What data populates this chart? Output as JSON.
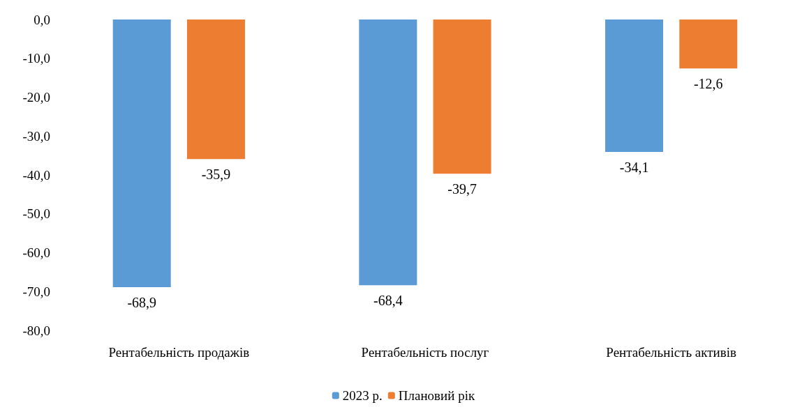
{
  "chart_data": {
    "type": "bar",
    "categories": [
      "Рентабельність продажів",
      "Рентабельність послуг",
      "Рентабельність активів"
    ],
    "series": [
      {
        "name": "2023 р.",
        "color": "#5b9bd5",
        "values": [
          -68.9,
          -68.4,
          -34.1
        ],
        "value_labels": [
          "-68,9",
          "-68,4",
          "-34,1"
        ]
      },
      {
        "name": "Плановий рік",
        "color": "#ed7d31",
        "values": [
          -35.9,
          -39.7,
          -12.6
        ],
        "value_labels": [
          "-35,9",
          "-39,7",
          "-12,6"
        ]
      }
    ],
    "ylim": [
      -80,
      0
    ],
    "yticks": [
      {
        "value": 0,
        "label": "0,0"
      },
      {
        "value": -10,
        "label": "-10,0"
      },
      {
        "value": -20,
        "label": "-20,0"
      },
      {
        "value": -30,
        "label": "-30,0"
      },
      {
        "value": -40,
        "label": "-40,0"
      },
      {
        "value": -50,
        "label": "-50,0"
      },
      {
        "value": -60,
        "label": "-60,0"
      },
      {
        "value": -70,
        "label": "-70,0"
      },
      {
        "value": -80,
        "label": "-80,0"
      }
    ],
    "grid": false,
    "legend": "bottom"
  }
}
